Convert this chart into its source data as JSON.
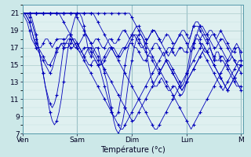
{
  "xlabel": "Température (°c)",
  "background_color": "#cce8e8",
  "plot_bg_color": "#dff0f0",
  "grid_color_major": "#aacccc",
  "grid_color_minor": "#c4dede",
  "line_color": "#0000bb",
  "ylim": [
    7,
    22
  ],
  "xlim": [
    0,
    97
  ],
  "yticks": [
    7,
    9,
    11,
    13,
    15,
    17,
    19,
    21
  ],
  "day_labels": [
    "Ven",
    "Sam",
    "Dim",
    "Lun",
    "M"
  ],
  "day_positions": [
    0,
    24,
    48,
    72,
    96
  ],
  "marker_step": 3,
  "series": [
    [
      21.0,
      21.0,
      21.0,
      21.0,
      20.5,
      19.5,
      18.5,
      17.0,
      15.5,
      14.0,
      12.5,
      11.0,
      9.5,
      8.5,
      8.0,
      8.5,
      9.5,
      11.0,
      13.0,
      15.0,
      17.0,
      18.5,
      19.5,
      20.5,
      21.0,
      21.0,
      20.5,
      19.5,
      18.0,
      16.5,
      16.0,
      16.5,
      17.0,
      17.0,
      16.0,
      15.0,
      14.0,
      13.0,
      11.5,
      10.0,
      8.5,
      7.5,
      7.0,
      7.5,
      8.5,
      10.0,
      12.0,
      14.0,
      15.5,
      17.0,
      18.0,
      18.5,
      18.5,
      18.0,
      17.0,
      15.5,
      14.0,
      13.0,
      12.5,
      12.5,
      13.0,
      13.5,
      13.0,
      12.5,
      12.0,
      12.0,
      12.5,
      12.5,
      12.0,
      11.5,
      11.5,
      12.0,
      13.0,
      14.5,
      16.0,
      17.5,
      18.5,
      18.5,
      18.0,
      18.5,
      18.5,
      18.0,
      17.5,
      16.5,
      15.5,
      16.5,
      16.5,
      15.5,
      15.5,
      15.0,
      14.5,
      14.0,
      13.5,
      13.0,
      12.5,
      12.5,
      12.5
    ],
    [
      21.0,
      21.0,
      21.0,
      20.5,
      20.0,
      19.0,
      18.0,
      17.0,
      15.5,
      14.0,
      12.5,
      11.5,
      10.5,
      10.0,
      10.5,
      11.5,
      13.0,
      15.0,
      17.0,
      17.5,
      17.5,
      17.0,
      17.0,
      17.5,
      17.5,
      17.0,
      16.5,
      16.0,
      15.5,
      15.0,
      15.0,
      15.5,
      15.5,
      15.0,
      14.5,
      13.5,
      12.5,
      11.5,
      10.5,
      9.5,
      9.0,
      9.0,
      9.5,
      11.0,
      13.0,
      15.0,
      16.5,
      17.5,
      17.5,
      17.0,
      17.0,
      16.5,
      16.0,
      15.5,
      15.5,
      16.0,
      16.0,
      15.5,
      15.0,
      14.5,
      14.0,
      14.5,
      15.0,
      15.5,
      15.5,
      15.0,
      14.5,
      14.0,
      13.5,
      13.0,
      12.5,
      13.0,
      14.0,
      15.5,
      17.0,
      17.5,
      18.0,
      18.0,
      17.5,
      17.0,
      16.5,
      16.5,
      17.0,
      16.5,
      16.0,
      15.5,
      15.5,
      16.0,
      16.0,
      15.5,
      15.0,
      14.5,
      14.0,
      13.5,
      13.0,
      12.5,
      12.0
    ],
    [
      21.0,
      21.0,
      20.5,
      20.0,
      19.0,
      18.0,
      17.0,
      16.5,
      16.0,
      15.5,
      15.0,
      14.5,
      14.0,
      14.5,
      15.5,
      16.5,
      17.0,
      17.5,
      17.0,
      17.0,
      17.0,
      17.5,
      18.0,
      18.0,
      17.5,
      17.0,
      16.5,
      16.0,
      16.5,
      17.0,
      17.0,
      16.5,
      16.0,
      15.5,
      15.0,
      15.0,
      15.5,
      16.0,
      16.5,
      17.0,
      17.0,
      16.5,
      16.0,
      16.0,
      16.5,
      17.0,
      17.0,
      17.5,
      18.0,
      18.5,
      18.5,
      18.0,
      17.5,
      17.0,
      16.5,
      16.0,
      16.5,
      17.0,
      17.5,
      17.5,
      17.0,
      16.5,
      16.0,
      16.5,
      17.0,
      17.0,
      16.5,
      16.0,
      16.5,
      17.0,
      17.0,
      16.5,
      16.5,
      17.5,
      18.5,
      19.5,
      19.5,
      19.5,
      19.0,
      18.5,
      18.0,
      17.5,
      18.0,
      18.5,
      18.5,
      18.0,
      17.5,
      17.0,
      16.5,
      16.0,
      15.5,
      15.5,
      16.0,
      15.5,
      15.0,
      15.0,
      15.0
    ],
    [
      21.0,
      21.0,
      20.5,
      20.0,
      19.0,
      18.0,
      17.5,
      17.0,
      16.5,
      16.0,
      15.5,
      15.0,
      15.0,
      15.5,
      16.0,
      17.0,
      17.0,
      17.5,
      17.5,
      17.5,
      18.0,
      18.0,
      17.5,
      17.0,
      17.0,
      16.5,
      16.5,
      17.0,
      17.0,
      17.0,
      16.5,
      16.0,
      15.5,
      15.0,
      15.0,
      15.5,
      16.0,
      16.5,
      17.0,
      17.0,
      16.5,
      16.0,
      16.0,
      16.5,
      17.0,
      17.0,
      17.5,
      18.0,
      18.5,
      18.5,
      18.0,
      17.5,
      17.0,
      17.0,
      17.5,
      18.0,
      18.5,
      19.0,
      19.0,
      18.5,
      18.0,
      17.5,
      17.0,
      16.5,
      16.0,
      16.5,
      17.0,
      17.5,
      18.0,
      18.5,
      18.5,
      18.0,
      17.5,
      17.0,
      16.5,
      17.0,
      18.0,
      19.0,
      19.5,
      19.5,
      19.0,
      18.5,
      18.0,
      17.5,
      17.0,
      17.0,
      17.5,
      18.0,
      18.0,
      17.5,
      17.0,
      16.5,
      16.0,
      15.5,
      15.0,
      15.5,
      15.5
    ],
    [
      21.0,
      20.5,
      20.0,
      19.0,
      18.0,
      17.5,
      17.0,
      17.0,
      17.0,
      17.5,
      18.0,
      18.0,
      17.5,
      17.0,
      17.5,
      18.0,
      18.0,
      18.0,
      18.0,
      18.0,
      18.5,
      18.5,
      18.0,
      17.5,
      17.0,
      17.5,
      18.0,
      18.5,
      18.5,
      18.0,
      17.5,
      17.5,
      18.0,
      18.0,
      17.5,
      17.0,
      17.0,
      17.5,
      18.0,
      18.0,
      17.5,
      17.5,
      18.0,
      18.5,
      19.0,
      19.0,
      18.5,
      18.0,
      18.5,
      19.0,
      19.5,
      19.5,
      19.0,
      18.5,
      18.0,
      18.0,
      18.5,
      19.0,
      19.0,
      18.5,
      18.0,
      17.5,
      18.0,
      18.5,
      18.5,
      18.0,
      17.5,
      17.5,
      18.0,
      18.5,
      19.0,
      19.0,
      18.5,
      18.0,
      18.5,
      19.5,
      20.0,
      20.0,
      19.5,
      19.0,
      18.5,
      18.5,
      19.0,
      19.0,
      18.5,
      18.0,
      18.5,
      19.0,
      18.5,
      18.0,
      17.5,
      17.0,
      16.5,
      16.5,
      17.0,
      17.0,
      15.5
    ],
    [
      21.0,
      21.0,
      21.0,
      21.0,
      21.0,
      21.0,
      21.0,
      21.0,
      21.0,
      21.0,
      21.0,
      21.0,
      21.0,
      21.0,
      21.0,
      21.0,
      21.0,
      20.5,
      20.0,
      19.5,
      19.0,
      18.5,
      18.0,
      17.5,
      17.0,
      16.5,
      16.0,
      15.5,
      15.0,
      14.5,
      14.0,
      13.5,
      13.0,
      12.5,
      12.0,
      11.5,
      11.0,
      10.5,
      10.0,
      9.5,
      9.0,
      8.5,
      8.0,
      7.5,
      7.5,
      8.0,
      8.5,
      9.0,
      9.5,
      10.0,
      10.5,
      11.0,
      11.5,
      12.0,
      12.5,
      13.0,
      13.5,
      14.0,
      14.5,
      15.0,
      15.5,
      16.0,
      16.5,
      15.5,
      15.0,
      14.5,
      14.0,
      13.5,
      13.0,
      12.5,
      12.0,
      12.5,
      13.0,
      13.5,
      14.0,
      14.5,
      15.0,
      15.5,
      16.0,
      16.5,
      17.0,
      16.5,
      16.0,
      15.5,
      15.0,
      14.5,
      14.0,
      13.5,
      13.0,
      12.5,
      12.0,
      12.5,
      13.0,
      13.5,
      14.0,
      14.5,
      15.0
    ],
    [
      21.0,
      21.0,
      21.0,
      21.0,
      21.0,
      21.0,
      21.0,
      21.0,
      21.0,
      21.0,
      21.0,
      21.0,
      21.0,
      21.0,
      21.0,
      21.0,
      21.0,
      21.0,
      21.0,
      21.0,
      21.0,
      21.0,
      21.0,
      21.0,
      20.5,
      20.0,
      19.5,
      19.0,
      18.5,
      18.0,
      17.5,
      17.0,
      16.5,
      16.0,
      15.5,
      15.0,
      14.5,
      14.0,
      13.5,
      13.0,
      12.5,
      12.0,
      11.5,
      11.0,
      10.5,
      10.0,
      9.5,
      9.0,
      8.5,
      8.5,
      9.0,
      9.5,
      10.0,
      10.5,
      11.0,
      11.5,
      12.0,
      12.5,
      13.0,
      13.5,
      14.0,
      14.5,
      15.0,
      15.5,
      15.0,
      14.5,
      14.0,
      13.5,
      13.0,
      12.5,
      12.0,
      12.5,
      13.0,
      13.5,
      14.0,
      14.5,
      15.0,
      15.5,
      16.0,
      16.5,
      16.0,
      15.5,
      15.0,
      14.5,
      14.0,
      13.5,
      13.0,
      12.5,
      12.0,
      12.5,
      13.0,
      13.5,
      14.0,
      14.5,
      15.0,
      14.5,
      14.0
    ],
    [
      21.0,
      21.0,
      21.0,
      21.0,
      21.0,
      21.0,
      21.0,
      21.0,
      21.0,
      21.0,
      21.0,
      21.0,
      21.0,
      21.0,
      21.0,
      21.0,
      21.0,
      21.0,
      21.0,
      21.0,
      21.0,
      21.0,
      21.0,
      21.0,
      21.0,
      21.0,
      21.0,
      21.0,
      21.0,
      21.0,
      21.0,
      21.0,
      20.5,
      20.0,
      19.5,
      19.0,
      18.5,
      18.0,
      17.5,
      17.0,
      16.5,
      16.0,
      15.5,
      15.0,
      14.5,
      14.0,
      13.5,
      13.0,
      12.5,
      12.0,
      11.5,
      11.0,
      10.5,
      10.0,
      9.5,
      9.0,
      8.5,
      8.0,
      7.5,
      7.5,
      8.0,
      8.5,
      9.0,
      9.5,
      10.0,
      10.5,
      11.0,
      11.5,
      12.0,
      12.5,
      13.0,
      13.5,
      14.0,
      14.5,
      15.0,
      15.5,
      16.0,
      16.5,
      17.0,
      17.5,
      17.0,
      16.5,
      16.0,
      15.5,
      15.0,
      14.5,
      14.0,
      13.5,
      13.0,
      12.5,
      12.0,
      12.5,
      13.0,
      13.5,
      14.0,
      14.5,
      15.0
    ],
    [
      21.0,
      21.0,
      21.0,
      21.0,
      21.0,
      21.0,
      21.0,
      21.0,
      21.0,
      21.0,
      21.0,
      21.0,
      21.0,
      21.0,
      21.0,
      21.0,
      21.0,
      21.0,
      21.0,
      21.0,
      21.0,
      21.0,
      21.0,
      21.0,
      21.0,
      21.0,
      21.0,
      21.0,
      21.0,
      21.0,
      21.0,
      21.0,
      21.0,
      21.0,
      21.0,
      21.0,
      21.0,
      21.0,
      21.0,
      21.0,
      21.0,
      21.0,
      21.0,
      21.0,
      21.0,
      21.0,
      21.0,
      21.0,
      20.5,
      20.0,
      19.5,
      19.0,
      18.5,
      18.0,
      17.5,
      17.0,
      16.5,
      16.0,
      15.5,
      15.0,
      14.5,
      14.0,
      13.5,
      13.0,
      12.5,
      12.0,
      11.5,
      11.0,
      10.5,
      10.0,
      9.5,
      9.0,
      8.5,
      8.0,
      7.5,
      8.0,
      8.5,
      9.0,
      9.5,
      10.0,
      10.5,
      11.0,
      11.5,
      12.0,
      12.5,
      13.0,
      13.5,
      14.0,
      14.5,
      15.0,
      15.5,
      16.0,
      16.5,
      17.0,
      17.5,
      17.0,
      16.5
    ]
  ]
}
